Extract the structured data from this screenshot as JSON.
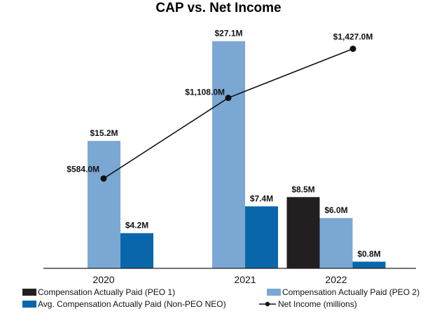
{
  "chart_data": {
    "type": "bar",
    "title": "CAP vs. Net Income",
    "categories": [
      "2020",
      "2021",
      "2022"
    ],
    "series": [
      {
        "name": "Compensation Actually Paid (PEO 1)",
        "color": "#231f20",
        "values": [
          null,
          null,
          8.5
        ],
        "labels": [
          "",
          "",
          "$8.5M"
        ]
      },
      {
        "name": "Compensation Actually Paid (PEO 2)",
        "color": "#7ba7d3",
        "values": [
          15.2,
          27.1,
          6.0
        ],
        "labels": [
          "$15.2M",
          "$27.1M",
          "$6.0M"
        ]
      },
      {
        "name": "Avg. Compensation Actually Paid (Non-PEO NEO)",
        "color": "#0a66aa",
        "values": [
          4.2,
          7.4,
          0.8
        ],
        "labels": [
          "$4.2M",
          "$7.4M",
          "$0.8M"
        ]
      }
    ],
    "line_series": {
      "name": "Net Income (millions)",
      "color": "#111111",
      "values": [
        584.0,
        1108.0,
        1427.0
      ],
      "labels": [
        "$584.0M",
        "$1,108.0M",
        "$1,427.0M"
      ],
      "ylim": [
        0,
        1580
      ]
    },
    "ylim": [
      0,
      29
    ],
    "legend_position": "bottom",
    "grid": false
  }
}
